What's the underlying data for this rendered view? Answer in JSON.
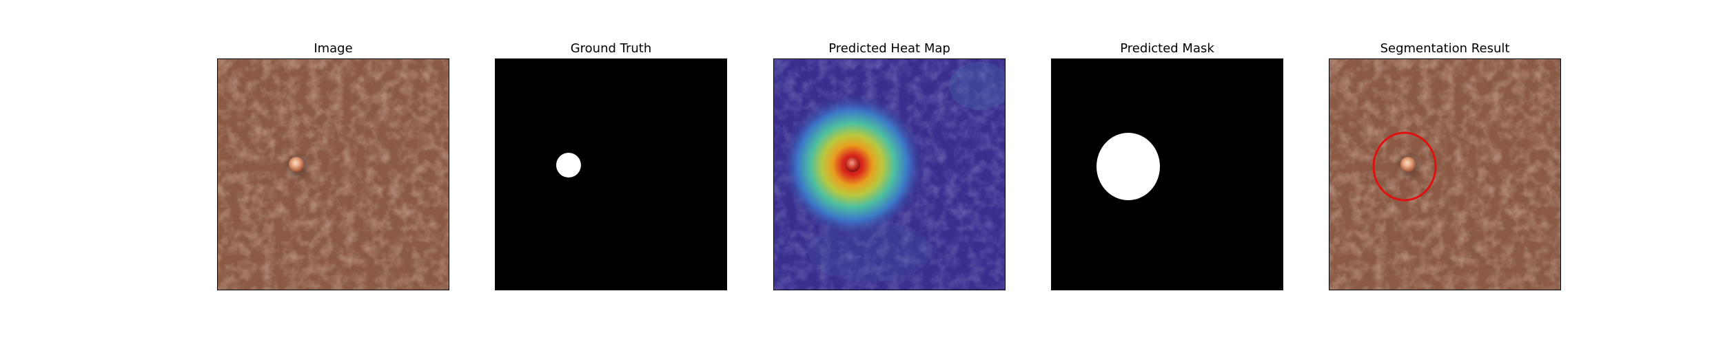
{
  "panels": [
    {
      "title": "Image",
      "content": "leather-texture-with-defect"
    },
    {
      "title": "Ground Truth",
      "content": "binary-mask-small-defect"
    },
    {
      "title": "Predicted Heat Map",
      "content": "heatmap-overlay"
    },
    {
      "title": "Predicted Mask",
      "content": "binary-mask-predicted"
    },
    {
      "title": "Segmentation Result",
      "content": "leather-texture-with-red-outline"
    }
  ],
  "colors": {
    "leather_base": "#8a5a45",
    "leather_dark": "#6f4433",
    "mask_background": "#000000",
    "mask_foreground": "#ffffff",
    "heat_low": "#3a2f8f",
    "heat_high": "#c0141c",
    "outline": "#e01010",
    "defect": "#e7a47c"
  }
}
